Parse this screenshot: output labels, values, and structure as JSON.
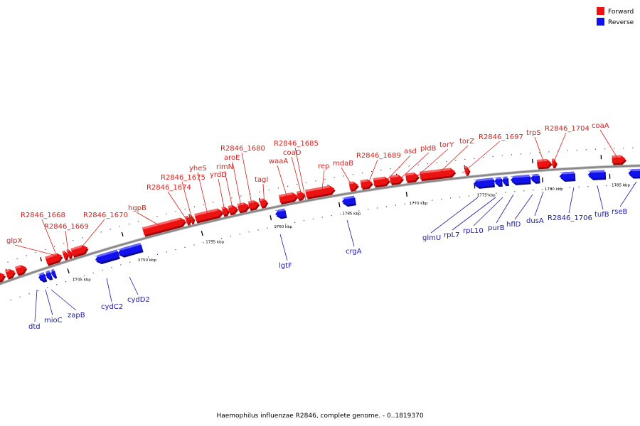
{
  "caption": "Haemophilus influenzae R2846, complete genome. - 0..1819370",
  "legend": [
    {
      "label": "Forward",
      "color": "#ee1111"
    },
    {
      "label": "Reverse",
      "color": "#1111ee"
    }
  ],
  "colors": {
    "forward": "#ee1111",
    "forward_top": "#ff7a7a",
    "forward_label": "#d42020",
    "reverse": "#1111ee",
    "reverse_top": "#7a7aff",
    "reverse_label": "#1a1aa6",
    "backbone": "#888888"
  },
  "ticks": [
    "1745 kbp",
    "1750 kbp",
    "1755 kbp",
    "1760 kbp",
    "1765 kbp",
    "1770 kbp",
    "1775 kbp",
    "1780 kbp",
    "1785 kbp"
  ],
  "forward_labels": [
    "glpX",
    "R2846_1668",
    "R2846_1669",
    "R2846_1670",
    "hgpB",
    "R2846_1674",
    "R2846_1675",
    "yheS",
    "yrdD",
    "rimN",
    "aroE",
    "R2846_1680",
    "tagI",
    "waaA",
    "coaD",
    "R2846_1685",
    "rep",
    "mdaB",
    "R2846_1689",
    "asd",
    "pldB",
    "torY",
    "torZ",
    "R2846_1697",
    "trpS",
    "R2846_1704",
    "coaA"
  ],
  "reverse_labels": [
    "dtd",
    "mioC",
    "zapB",
    "cydC2",
    "cydD2",
    "lgtF",
    "crgA",
    "glmU",
    "rpL7",
    "rpL10",
    "purB",
    "hflD",
    "dusA",
    "R2846_1706",
    "tufB",
    "rseB"
  ]
}
